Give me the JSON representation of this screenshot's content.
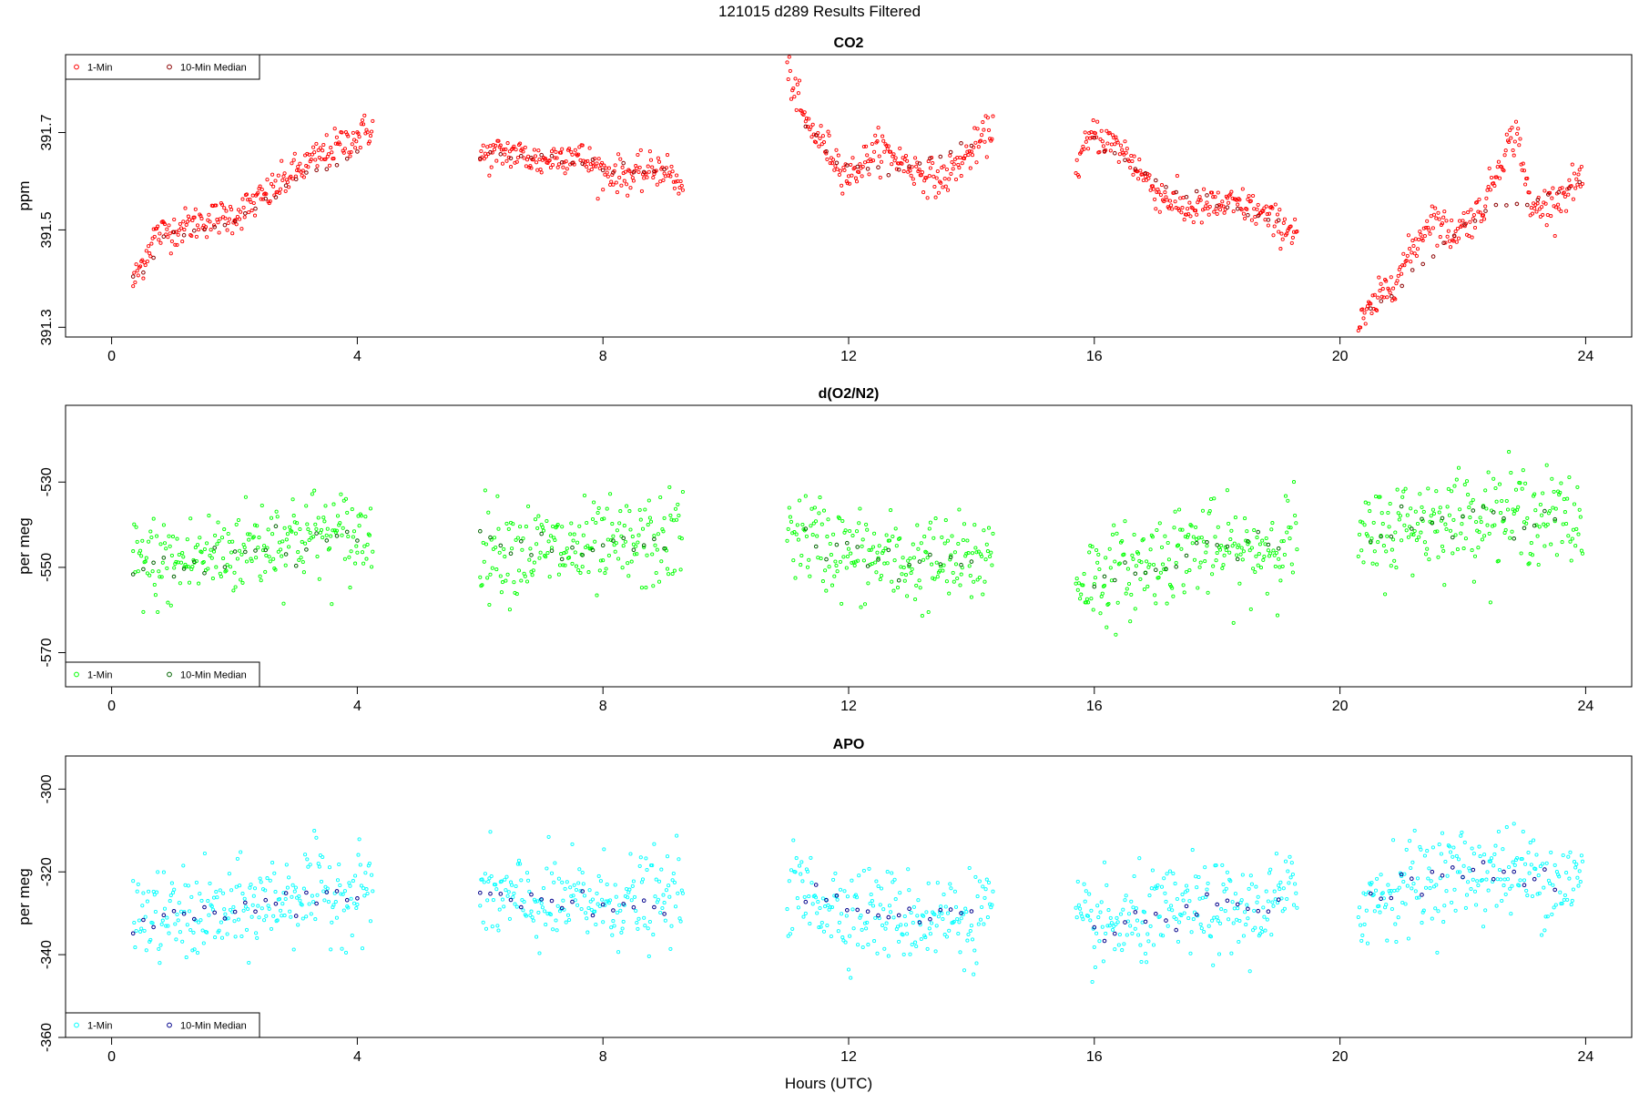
{
  "main_title": "121015   d289   Results Filtered",
  "xlabel": "Hours (UTC)",
  "chart_data": [
    {
      "type": "scatter",
      "title": "CO2",
      "xlabel": "",
      "ylabel": "ppm",
      "xlim": [
        -0.75,
        24.75
      ],
      "ylim": [
        391.28,
        391.86
      ],
      "x_ticks": [
        0,
        4,
        8,
        12,
        16,
        20,
        24
      ],
      "x_tick_labels": [
        "0",
        "4",
        "8",
        "12",
        "16",
        "20",
        "24"
      ],
      "y_ticks": [
        391.3,
        391.5,
        391.7
      ],
      "y_tick_labels": [
        "391.3",
        "391.5",
        "391.7"
      ],
      "legend_position": "top-left",
      "colors": {
        "one_min": "#ff0000",
        "median": "#8b0000"
      },
      "series": [
        {
          "name": "1-Min",
          "segments": [
            [
              [
                0.35,
                391.39
              ],
              [
                0.7,
                391.49
              ],
              [
                1.0,
                391.5
              ],
              [
                1.5,
                391.52
              ],
              [
                2.0,
                391.53
              ],
              [
                2.5,
                391.57
              ],
              [
                3.0,
                391.62
              ],
              [
                3.5,
                391.66
              ],
              [
                3.8,
                391.68
              ],
              [
                4.25,
                391.71
              ]
            ],
            [
              [
                6.0,
                391.65
              ],
              [
                6.5,
                391.66
              ],
              [
                7.0,
                391.64
              ],
              [
                7.5,
                391.66
              ],
              [
                8.0,
                391.62
              ],
              [
                8.5,
                391.61
              ],
              [
                9.0,
                391.63
              ],
              [
                9.3,
                391.58
              ]
            ],
            [
              [
                11.0,
                391.83
              ],
              [
                11.3,
                391.72
              ],
              [
                11.7,
                391.66
              ],
              [
                12.0,
                391.61
              ],
              [
                12.5,
                391.67
              ],
              [
                13.0,
                391.63
              ],
              [
                13.5,
                391.6
              ],
              [
                14.0,
                391.66
              ],
              [
                14.35,
                391.71
              ]
            ],
            [
              [
                15.7,
                391.63
              ],
              [
                16.0,
                391.7
              ],
              [
                16.5,
                391.66
              ],
              [
                17.0,
                391.58
              ],
              [
                17.5,
                391.54
              ],
              [
                18.0,
                391.55
              ],
              [
                18.5,
                391.55
              ],
              [
                19.0,
                391.51
              ],
              [
                19.3,
                391.5
              ]
            ],
            [
              [
                20.3,
                391.3
              ],
              [
                20.7,
                391.37
              ],
              [
                21.0,
                391.42
              ],
              [
                21.5,
                391.53
              ],
              [
                21.8,
                391.49
              ],
              [
                22.3,
                391.54
              ],
              [
                22.7,
                391.67
              ],
              [
                22.9,
                391.7
              ],
              [
                23.1,
                391.54
              ],
              [
                23.5,
                391.56
              ],
              [
                23.95,
                391.61
              ]
            ]
          ]
        },
        {
          "name": "10-Min Median",
          "segments": [
            [
              [
                0.35,
                391.39
              ],
              [
                1.0,
                391.49
              ],
              [
                2.0,
                391.51
              ],
              [
                3.0,
                391.6
              ],
              [
                4.0,
                391.66
              ]
            ],
            [
              [
                6.0,
                391.65
              ],
              [
                7.0,
                391.65
              ],
              [
                8.0,
                391.63
              ],
              [
                9.0,
                391.62
              ]
            ],
            [
              [
                11.3,
                391.72
              ],
              [
                12.0,
                391.62
              ],
              [
                13.0,
                391.63
              ],
              [
                14.0,
                391.67
              ]
            ],
            [
              [
                16.0,
                391.68
              ],
              [
                17.0,
                391.6
              ],
              [
                18.0,
                391.55
              ],
              [
                19.0,
                391.52
              ]
            ],
            [
              [
                20.5,
                391.33
              ],
              [
                21.5,
                391.45
              ],
              [
                22.5,
                391.55
              ],
              [
                23.2,
                391.55
              ],
              [
                23.9,
                391.6
              ]
            ]
          ]
        }
      ]
    },
    {
      "type": "scatter",
      "title": "d(O2/N2)",
      "xlabel": "",
      "ylabel": "per meg",
      "xlim": [
        -0.75,
        24.75
      ],
      "ylim": [
        -578,
        -512
      ],
      "x_ticks": [
        0,
        4,
        8,
        12,
        16,
        20,
        24
      ],
      "x_tick_labels": [
        "0",
        "4",
        "8",
        "12",
        "16",
        "20",
        "24"
      ],
      "y_ticks": [
        -570,
        -550,
        -530
      ],
      "y_tick_labels": [
        "-570",
        "-550",
        "-530"
      ],
      "legend_position": "bottom-left",
      "colors": {
        "one_min": "#00ff00",
        "median": "#006400"
      },
      "series": [
        {
          "name": "1-Min",
          "segments": [
            [
              [
                0.35,
                -549
              ],
              [
                1.0,
                -549
              ],
              [
                2.0,
                -546
              ],
              [
                3.0,
                -542
              ],
              [
                4.0,
                -543
              ],
              [
                4.25,
                -542
              ]
            ],
            [
              [
                6.0,
                -545
              ],
              [
                7.0,
                -546
              ],
              [
                8.0,
                -546
              ],
              [
                9.0,
                -544
              ],
              [
                9.3,
                -542
              ]
            ],
            [
              [
                11.0,
                -541
              ],
              [
                12.0,
                -547
              ],
              [
                13.0,
                -549
              ],
              [
                14.0,
                -549
              ],
              [
                14.35,
                -546
              ]
            ],
            [
              [
                15.7,
                -553
              ],
              [
                16.5,
                -551
              ],
              [
                17.5,
                -545
              ],
              [
                18.5,
                -547
              ],
              [
                19.3,
                -542
              ]
            ],
            [
              [
                20.3,
                -545
              ],
              [
                21.0,
                -540
              ],
              [
                22.0,
                -538
              ],
              [
                23.0,
                -537
              ],
              [
                23.95,
                -540
              ]
            ]
          ]
        },
        {
          "name": "10-Min Median",
          "segments": [
            [
              [
                0.35,
                -551
              ],
              [
                1.0,
                -549
              ],
              [
                2.0,
                -547
              ],
              [
                3.0,
                -544
              ],
              [
                4.0,
                -543
              ]
            ],
            [
              [
                6.0,
                -543
              ],
              [
                7.0,
                -546
              ],
              [
                8.0,
                -546
              ],
              [
                9.0,
                -545
              ]
            ],
            [
              [
                11.3,
                -542
              ],
              [
                12.0,
                -546
              ],
              [
                13.0,
                -549
              ],
              [
                14.0,
                -548
              ]
            ],
            [
              [
                16.0,
                -553
              ],
              [
                17.0,
                -550
              ],
              [
                18.0,
                -546
              ],
              [
                19.0,
                -545
              ]
            ],
            [
              [
                20.5,
                -543
              ],
              [
                21.5,
                -539
              ],
              [
                22.5,
                -538
              ],
              [
                23.5,
                -540
              ]
            ]
          ]
        }
      ]
    },
    {
      "type": "scatter",
      "title": "APO",
      "xlabel": "Hours (UTC)",
      "ylabel": "per meg",
      "xlim": [
        -0.75,
        24.75
      ],
      "ylim": [
        -360,
        -292
      ],
      "x_ticks": [
        0,
        4,
        8,
        12,
        16,
        20,
        24
      ],
      "x_tick_labels": [
        "0",
        "4",
        "8",
        "12",
        "16",
        "20",
        "24"
      ],
      "y_ticks": [
        -360,
        -340,
        -320,
        -300
      ],
      "y_tick_labels": [
        "-360",
        "-340",
        "-320",
        "-300"
      ],
      "legend_position": "bottom-left",
      "colors": {
        "one_min": "#00ffff",
        "median": "#00008b"
      },
      "series": [
        {
          "name": "1-Min",
          "segments": [
            [
              [
                0.35,
                -331
              ],
              [
                1.0,
                -331
              ],
              [
                2.0,
                -330
              ],
              [
                3.0,
                -325
              ],
              [
                4.0,
                -325
              ],
              [
                4.25,
                -323
              ]
            ],
            [
              [
                6.0,
                -326
              ],
              [
                7.0,
                -328
              ],
              [
                8.0,
                -327
              ],
              [
                9.0,
                -327
              ],
              [
                9.3,
                -325
              ]
            ],
            [
              [
                11.0,
                -324
              ],
              [
                12.0,
                -329
              ],
              [
                13.0,
                -331
              ],
              [
                14.0,
                -331
              ],
              [
                14.35,
                -328
              ]
            ],
            [
              [
                15.7,
                -334
              ],
              [
                16.5,
                -333
              ],
              [
                17.5,
                -329
              ],
              [
                18.5,
                -330
              ],
              [
                19.3,
                -325
              ]
            ],
            [
              [
                20.3,
                -328
              ],
              [
                21.0,
                -323
              ],
              [
                22.0,
                -320
              ],
              [
                23.0,
                -320
              ],
              [
                23.95,
                -323
              ]
            ]
          ]
        },
        {
          "name": "10-Min Median",
          "segments": [
            [
              [
                0.35,
                -333
              ],
              [
                1.0,
                -331
              ],
              [
                2.0,
                -329
              ],
              [
                3.0,
                -327
              ],
              [
                4.0,
                -325
              ]
            ],
            [
              [
                6.0,
                -325
              ],
              [
                7.0,
                -328
              ],
              [
                8.0,
                -327
              ],
              [
                9.0,
                -328
              ]
            ],
            [
              [
                11.3,
                -324
              ],
              [
                12.0,
                -328
              ],
              [
                13.0,
                -331
              ],
              [
                14.0,
                -330
              ]
            ],
            [
              [
                16.0,
                -335
              ],
              [
                17.0,
                -332
              ],
              [
                18.0,
                -328
              ],
              [
                19.0,
                -327
              ]
            ],
            [
              [
                20.5,
                -325
              ],
              [
                21.5,
                -321
              ],
              [
                22.5,
                -320
              ],
              [
                23.5,
                -322
              ]
            ]
          ]
        }
      ]
    }
  ]
}
